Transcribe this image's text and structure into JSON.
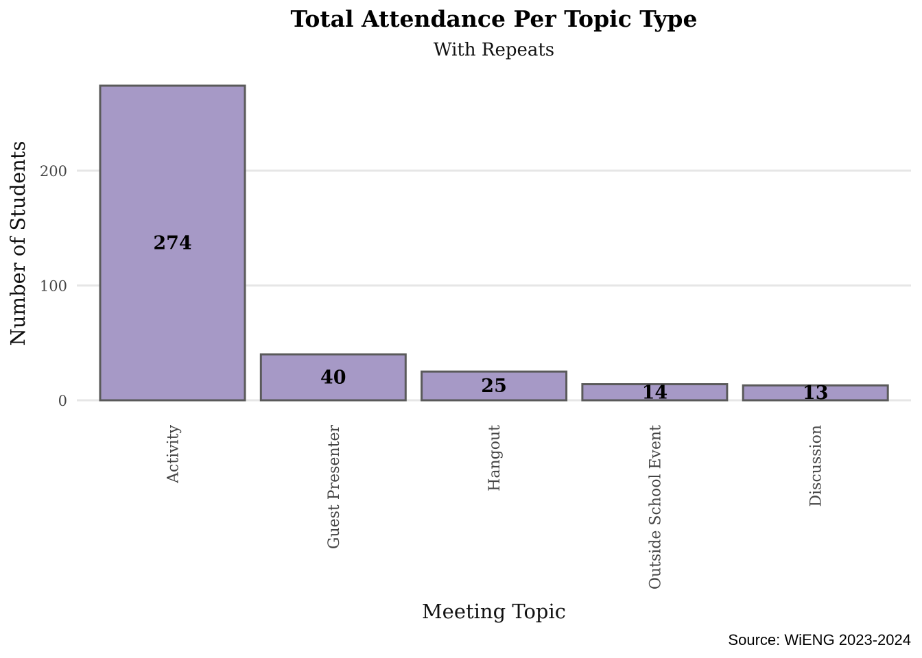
{
  "chart_data": {
    "type": "bar",
    "title": "Total Attendance Per Topic Type",
    "subtitle": "With Repeats",
    "xlabel": "Meeting Topic",
    "ylabel": "Number of Students",
    "caption": "Source: WiENG 2023-2024",
    "categories": [
      "Activity",
      "Guest Presenter",
      "Hangout",
      "Outside School Event",
      "Discussion"
    ],
    "values": [
      274,
      40,
      25,
      14,
      13
    ],
    "data_labels": [
      "274",
      "40",
      "25",
      "14",
      "13"
    ],
    "yticks": [
      0,
      100,
      200
    ],
    "ytick_labels": [
      "0",
      "100",
      "200"
    ],
    "ylim": [
      0,
      274
    ],
    "grid": true,
    "legend": "none",
    "colors": {
      "bar_fill": "#a699c6",
      "bar_outline": "#5a5a5a",
      "grid": "#e6e6e6"
    }
  }
}
